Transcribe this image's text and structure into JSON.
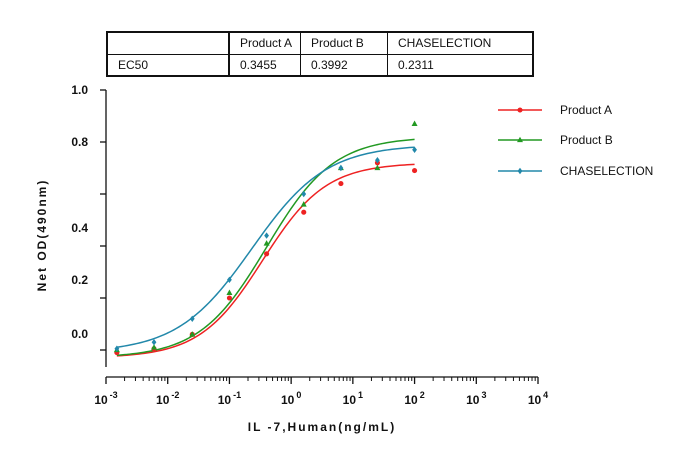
{
  "table": {
    "headers": [
      "",
      "Product A",
      "Product B",
      "CHASELECTION"
    ],
    "row": [
      "EC50",
      "0.3455",
      "0.3992",
      "0.2311"
    ]
  },
  "chart_data": {
    "type": "scatter",
    "x_scale": "log",
    "xlim": [
      0.001,
      10000
    ],
    "ylim": [
      -0.1,
      1.0
    ],
    "xlabel": "IL -7,Human(ng/mL)",
    "ylabel": "Net OD(490nm)",
    "x_ticks": [
      {
        "value": 0.001,
        "base": "10",
        "exp": "-3"
      },
      {
        "value": 0.01,
        "base": "10",
        "exp": "-2"
      },
      {
        "value": 0.1,
        "base": "10",
        "exp": "-1"
      },
      {
        "value": 1,
        "base": "10",
        "exp": "0"
      },
      {
        "value": 10,
        "base": "10",
        "exp": "1"
      },
      {
        "value": 100,
        "base": "10",
        "exp": "2"
      },
      {
        "value": 1000,
        "base": "10",
        "exp": "3"
      },
      {
        "value": 10000,
        "base": "10",
        "exp": "4"
      }
    ],
    "y_ticks": [
      0.0,
      0.2,
      0.4,
      0.6,
      0.8,
      1.0
    ],
    "y_tick_labels": [
      {
        "value": 1.0,
        "label": "1.0"
      },
      {
        "value": 0.8,
        "label": "0.8"
      },
      {
        "value": 0.4,
        "label": "0.4"
      },
      {
        "value": 0.2,
        "label": "0.2"
      },
      {
        "value": 0.0,
        "label": "0.0"
      }
    ],
    "x": [
      0.0015,
      0.006,
      0.025,
      0.1,
      0.4,
      1.6,
      6.4,
      25,
      100
    ],
    "series": [
      {
        "name": "Product A",
        "color": "#ee2222",
        "marker": "circle",
        "values": [
          -0.01,
          0.005,
          0.06,
          0.2,
          0.37,
          0.53,
          0.64,
          0.72,
          0.69
        ],
        "curve": {
          "bottom": -0.03,
          "top": 0.72,
          "ec50": 0.3455,
          "hill": 0.85
        }
      },
      {
        "name": "Product B",
        "color": "#229922",
        "marker": "triangle",
        "values": [
          0.0,
          0.01,
          0.06,
          0.22,
          0.41,
          0.56,
          0.7,
          0.7,
          0.87
        ],
        "curve": {
          "bottom": -0.03,
          "top": 0.82,
          "ec50": 0.3992,
          "hill": 0.8
        }
      },
      {
        "name": "CHASELECTION",
        "color": "#2288aa",
        "marker": "diamond",
        "values": [
          0.005,
          0.03,
          0.12,
          0.27,
          0.44,
          0.6,
          0.7,
          0.73,
          0.77
        ],
        "curve": {
          "bottom": -0.01,
          "top": 0.79,
          "ec50": 0.2311,
          "hill": 0.72
        }
      }
    ]
  }
}
